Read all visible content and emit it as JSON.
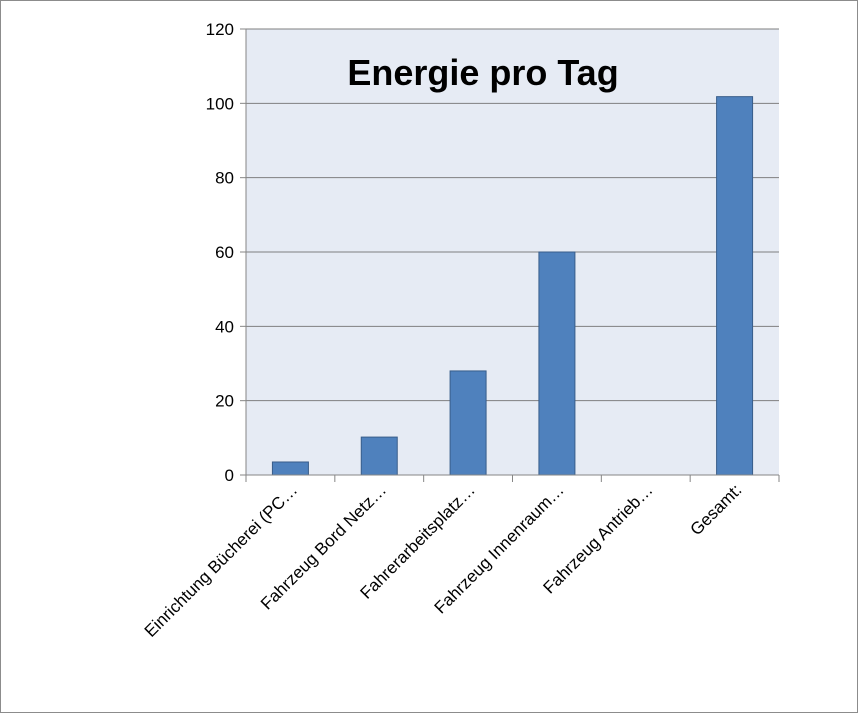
{
  "chart_data": {
    "type": "bar",
    "title": "Energie pro Tag",
    "categories": [
      "Einrichtung Bücherei (PC…",
      "Fahrzeug Bord Netz…",
      "Fahrerarbeitsplatz…",
      "Fahrzeug Innenraum…",
      "Fahrzeug Antrieb…",
      "Gesamt:"
    ],
    "values": [
      3.5,
      10.2,
      28.0,
      60.0,
      0,
      101.8
    ],
    "ylim": [
      0,
      120
    ],
    "yticks": [
      0,
      20,
      40,
      60,
      80,
      100,
      120
    ],
    "grid": true,
    "legend": "none",
    "colors": {
      "bar_fill": "#4f81bd",
      "bar_stroke": "#385d8a",
      "plot_background": "#e6ebf4",
      "gridline": "#7f7f7f"
    }
  }
}
